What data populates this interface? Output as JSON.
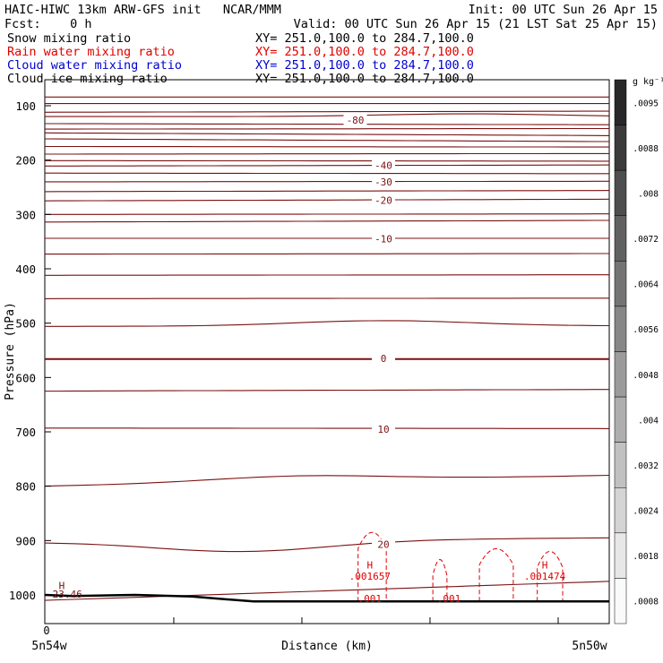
{
  "header": {
    "line1_left": "HAIC-HIWC 13km ARW-GFS init   NCAR/MMM",
    "line1_right": "Init: 00 UTC Sun 26 Apr 15",
    "line2_left": "Fcst:    0 h",
    "line2_right": "Valid: 00 UTC Sun 26 Apr 15 (21 LST Sat 25 Apr 15)"
  },
  "fields": [
    {
      "name": "Snow mixing ratio",
      "xy": "XY= 251.0,100.0 to 284.7,100.0",
      "color": "#000000"
    },
    {
      "name": "Rain water mixing ratio",
      "xy": "XY= 251.0,100.0 to 284.7,100.0",
      "color": "#e00000"
    },
    {
      "name": "Cloud water mixing ratio",
      "xy": "XY= 251.0,100.0 to 284.7,100.0",
      "color": "#0000d0"
    },
    {
      "name": "Cloud ice mixing ratio",
      "xy": "XY= 251.0,100.0 to 284.7,100.0",
      "color": "#000000"
    }
  ],
  "colors": {
    "temperature_contour": "#7a1010",
    "rain_contour": "#e00000",
    "terrain": "#000000",
    "text": "#000000"
  },
  "chart_data": {
    "type": "contour",
    "ylabel": "Pressure (hPa)",
    "xlabel": "Distance (km)",
    "x_start_label": "5n54w",
    "x_end_label": "5n50w",
    "x_zero_label": "0",
    "ylim": [
      1030,
      84
    ],
    "y_ticks": [
      100,
      200,
      300,
      400,
      500,
      600,
      700,
      800,
      900,
      1000
    ],
    "temperature_labels": [
      {
        "label": "-80",
        "p": 126
      },
      {
        "label": "-40",
        "p": 210
      },
      {
        "label": "-30",
        "p": 240
      },
      {
        "label": "-20",
        "p": 274
      },
      {
        "label": "-10",
        "p": 345
      },
      {
        "label": "0",
        "p": 565
      },
      {
        "label": "10",
        "p": 695
      },
      {
        "label": "20",
        "p": 907
      }
    ],
    "rain_labels": [
      {
        "label": "H",
        "x": 0.56,
        "p": 945
      },
      {
        "label": ".001657",
        "x": 0.56,
        "p": 965
      },
      {
        "label": "H",
        "x": 0.87,
        "p": 945
      },
      {
        "label": ".001474",
        "x": 0.87,
        "p": 965
      },
      {
        "label": ".001",
        "x": 0.56,
        "p": 1007
      },
      {
        "label": ".001",
        "x": 0.7,
        "p": 1007
      }
    ],
    "surface_labels": [
      {
        "label": "H",
        "x": 0.03,
        "p": 983
      },
      {
        "label": "23.46",
        "x": 0.04,
        "p": 998
      }
    ],
    "colorbar": {
      "unit": "g kg⁻¹",
      "labels": [
        ".0095",
        ".0088",
        ".008",
        ".0072",
        ".0064",
        ".0056",
        ".0048",
        ".004",
        ".0032",
        ".0024",
        ".0018",
        ".0008"
      ]
    }
  }
}
